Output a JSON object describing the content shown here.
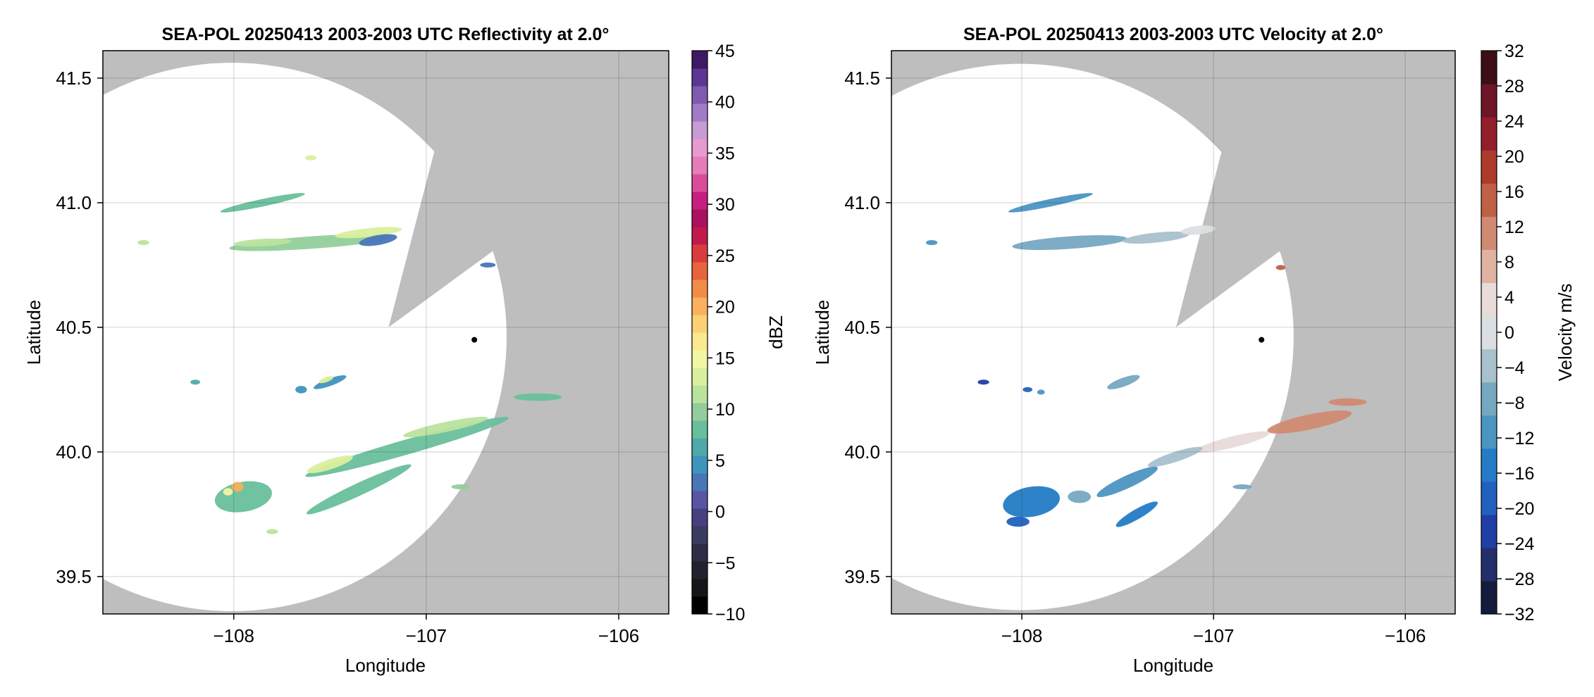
{
  "chart_data": [
    {
      "type": "heatmap",
      "title": "SEA-POL 20250413 2003-2003 UTC Reflectivity at 2.0°",
      "xlabel": "Longitude",
      "ylabel": "Latitude",
      "xlim": [
        -108.68,
        -105.74
      ],
      "ylim": [
        39.35,
        41.61
      ],
      "xticks": [
        -108,
        -107,
        -106
      ],
      "yticks": [
        39.5,
        40.0,
        40.5,
        41.0,
        41.5
      ],
      "xtick_labels": [
        "−108",
        "−107",
        "−106"
      ],
      "ytick_labels": [
        "39.5",
        "40.0",
        "40.5",
        "41.0",
        "41.5"
      ],
      "grid": true,
      "radar_site": {
        "lon": -106.75,
        "lat": 40.45
      },
      "colorbar": {
        "label": "dBZ",
        "min": -10,
        "max": 45,
        "step": 2.5,
        "ticks": [
          -10,
          -5,
          0,
          5,
          10,
          15,
          20,
          25,
          30,
          35,
          40,
          45
        ],
        "tick_labels": [
          "−10",
          "−5",
          "0",
          "5",
          "10",
          "15",
          "20",
          "25",
          "30",
          "35",
          "40",
          "45"
        ]
      },
      "echoes": [
        {
          "lon": -107.6,
          "lat": 40.84,
          "len": 0.85,
          "wid": 0.05,
          "angle": 4,
          "value": 18
        },
        {
          "lon": -107.3,
          "lat": 40.88,
          "len": 0.35,
          "wid": 0.035,
          "angle": 6,
          "value": 24
        },
        {
          "lon": -107.85,
          "lat": 40.84,
          "len": 0.3,
          "wid": 0.03,
          "angle": 3,
          "value": 20
        },
        {
          "lon": -107.85,
          "lat": 41.0,
          "len": 0.45,
          "wid": 0.03,
          "angle": 12,
          "value": 16
        },
        {
          "lon": -107.25,
          "lat": 40.85,
          "len": 0.2,
          "wid": 0.04,
          "angle": 10,
          "value": 9
        },
        {
          "lon": -107.5,
          "lat": 40.28,
          "len": 0.18,
          "wid": 0.03,
          "angle": 20,
          "value": 12
        },
        {
          "lon": -107.52,
          "lat": 40.29,
          "len": 0.08,
          "wid": 0.02,
          "angle": 20,
          "value": 23
        },
        {
          "lon": -107.65,
          "lat": 40.25,
          "len": 0.06,
          "wid": 0.03,
          "angle": 0,
          "value": 11
        },
        {
          "lon": -108.2,
          "lat": 40.28,
          "len": 0.05,
          "wid": 0.02,
          "angle": 0,
          "value": 14
        },
        {
          "lon": -107.6,
          "lat": 41.18,
          "len": 0.06,
          "wid": 0.02,
          "angle": 0,
          "value": 24
        },
        {
          "lon": -108.47,
          "lat": 40.84,
          "len": 0.06,
          "wid": 0.02,
          "angle": 0,
          "value": 22
        },
        {
          "lon": -107.1,
          "lat": 40.02,
          "len": 1.1,
          "wid": 0.06,
          "angle": 16,
          "value": 17
        },
        {
          "lon": -106.9,
          "lat": 40.1,
          "len": 0.45,
          "wid": 0.04,
          "angle": 12,
          "value": 22
        },
        {
          "lon": -107.5,
          "lat": 39.95,
          "len": 0.25,
          "wid": 0.04,
          "angle": 18,
          "value": 24
        },
        {
          "lon": -106.42,
          "lat": 40.22,
          "len": 0.25,
          "wid": 0.03,
          "angle": 0,
          "value": 15
        },
        {
          "lon": -107.35,
          "lat": 39.85,
          "len": 0.6,
          "wid": 0.05,
          "angle": 25,
          "value": 15
        },
        {
          "lon": -107.95,
          "lat": 39.82,
          "len": 0.3,
          "wid": 0.12,
          "angle": 10,
          "value": 17
        },
        {
          "lon": -107.98,
          "lat": 39.86,
          "len": 0.06,
          "wid": 0.04,
          "angle": 0,
          "value": 33
        },
        {
          "lon": -108.03,
          "lat": 39.84,
          "len": 0.05,
          "wid": 0.03,
          "angle": 0,
          "value": 26
        },
        {
          "lon": -107.8,
          "lat": 39.68,
          "len": 0.06,
          "wid": 0.02,
          "angle": 0,
          "value": 22
        },
        {
          "lon": -106.82,
          "lat": 39.86,
          "len": 0.1,
          "wid": 0.02,
          "angle": 0,
          "value": 18
        },
        {
          "lon": -106.68,
          "lat": 40.75,
          "len": 0.08,
          "wid": 0.02,
          "angle": 0,
          "value": 8
        }
      ]
    },
    {
      "type": "heatmap",
      "title": "SEA-POL 20250413 2003-2003 UTC Velocity at 2.0°",
      "xlabel": "Longitude",
      "ylabel": "Latitude",
      "xlim": [
        -108.68,
        -105.74
      ],
      "ylim": [
        39.35,
        41.61
      ],
      "xticks": [
        -108,
        -107,
        -106
      ],
      "yticks": [
        39.5,
        40.0,
        40.5,
        41.0,
        41.5
      ],
      "xtick_labels": [
        "−108",
        "−107",
        "−106"
      ],
      "ytick_labels": [
        "39.5",
        "40.0",
        "40.5",
        "41.0",
        "41.5"
      ],
      "grid": true,
      "radar_site": {
        "lon": -106.75,
        "lat": 40.45
      },
      "colorbar": {
        "label": "Velocity m/s",
        "min": -32,
        "max": 32,
        "step": 4,
        "ticks": [
          -32,
          -28,
          -24,
          -20,
          -16,
          -12,
          -8,
          -4,
          0,
          4,
          8,
          12,
          16,
          20,
          24,
          28,
          32
        ],
        "tick_labels": [
          "−32",
          "−28",
          "−24",
          "−20",
          "−16",
          "−12",
          "−8",
          "−4",
          "0",
          "4",
          "8",
          "12",
          "16",
          "20",
          "24",
          "28",
          "32"
        ]
      },
      "echoes": [
        {
          "lon": -107.75,
          "lat": 40.84,
          "len": 0.6,
          "wid": 0.05,
          "angle": 4,
          "value": -7
        },
        {
          "lon": -107.3,
          "lat": 40.86,
          "len": 0.35,
          "wid": 0.04,
          "angle": 6,
          "value": -3
        },
        {
          "lon": -107.08,
          "lat": 40.89,
          "len": 0.18,
          "wid": 0.035,
          "angle": 6,
          "value": 2
        },
        {
          "lon": -107.85,
          "lat": 41.0,
          "len": 0.45,
          "wid": 0.03,
          "angle": 12,
          "value": -9
        },
        {
          "lon": -108.47,
          "lat": 40.84,
          "len": 0.06,
          "wid": 0.02,
          "angle": 0,
          "value": -10
        },
        {
          "lon": -107.47,
          "lat": 40.28,
          "len": 0.18,
          "wid": 0.035,
          "angle": 20,
          "value": -6
        },
        {
          "lon": -108.2,
          "lat": 40.28,
          "len": 0.06,
          "wid": 0.02,
          "angle": 0,
          "value": -22
        },
        {
          "lon": -107.97,
          "lat": 40.25,
          "len": 0.05,
          "wid": 0.02,
          "angle": 0,
          "value": -20
        },
        {
          "lon": -107.9,
          "lat": 40.24,
          "len": 0.04,
          "wid": 0.02,
          "angle": 0,
          "value": -12
        },
        {
          "lon": -106.65,
          "lat": 40.74,
          "len": 0.05,
          "wid": 0.02,
          "angle": 0,
          "value": 18
        },
        {
          "lon": -106.5,
          "lat": 40.12,
          "len": 0.45,
          "wid": 0.06,
          "angle": 12,
          "value": 14
        },
        {
          "lon": -106.3,
          "lat": 40.2,
          "len": 0.2,
          "wid": 0.03,
          "angle": 0,
          "value": 13
        },
        {
          "lon": -106.9,
          "lat": 40.04,
          "len": 0.4,
          "wid": 0.045,
          "angle": 14,
          "value": 4
        },
        {
          "lon": -107.2,
          "lat": 39.98,
          "len": 0.3,
          "wid": 0.04,
          "angle": 18,
          "value": -3
        },
        {
          "lon": -107.45,
          "lat": 39.88,
          "len": 0.35,
          "wid": 0.05,
          "angle": 25,
          "value": -9
        },
        {
          "lon": -107.4,
          "lat": 39.75,
          "len": 0.25,
          "wid": 0.04,
          "angle": 30,
          "value": -14
        },
        {
          "lon": -107.95,
          "lat": 39.8,
          "len": 0.3,
          "wid": 0.12,
          "angle": 10,
          "value": -15
        },
        {
          "lon": -108.02,
          "lat": 39.72,
          "len": 0.12,
          "wid": 0.04,
          "angle": 0,
          "value": -18
        },
        {
          "lon": -107.7,
          "lat": 39.82,
          "len": 0.12,
          "wid": 0.05,
          "angle": 0,
          "value": -8
        },
        {
          "lon": -106.85,
          "lat": 39.86,
          "len": 0.1,
          "wid": 0.02,
          "angle": 0,
          "value": -7
        }
      ]
    }
  ]
}
